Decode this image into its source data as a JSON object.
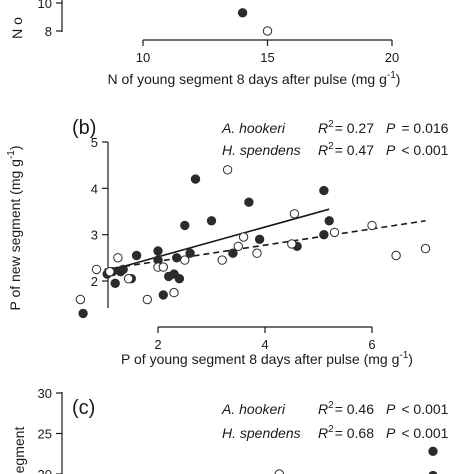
{
  "chart_data": [
    {
      "panel": "(a)",
      "type": "scatter",
      "xlabel": "N of young segment 8 days after pulse (mg g",
      "xlabel_sup": "-1",
      "xlabel_close": ")",
      "ylabel": "N o",
      "xlim": [
        10,
        20
      ],
      "xticks": [
        "10",
        "15",
        "20"
      ],
      "yticks": [
        "8",
        "10"
      ],
      "series": [
        {
          "marker": "filled",
          "points": [
            [
              14.0,
              9.3
            ]
          ]
        },
        {
          "marker": "open",
          "points": [
            [
              15.0,
              8.0
            ]
          ]
        }
      ]
    },
    {
      "panel": "(b)",
      "type": "scatter",
      "xlabel": "P of young segment 8 days after pulse (mg g",
      "xlabel_sup": "-1",
      "xlabel_close": ")",
      "ylabel": "P of new segment (mg g",
      "ylabel_sup": "-1",
      "ylabel_close": ")",
      "xlim": [
        0.5,
        7.0
      ],
      "ylim": [
        1.2,
        5.0
      ],
      "xticks": [
        "2",
        "4",
        "6"
      ],
      "yticks": [
        "2",
        "3",
        "4",
        "5"
      ],
      "stats": [
        {
          "species": "A. hookeri",
          "r2_label": "R",
          "r2_sup": "2",
          "r2_value": "= 0.27",
          "p_label": "P",
          "p_value": "= 0.016"
        },
        {
          "species": "H. spendens",
          "r2_label": "R",
          "r2_sup": "2",
          "r2_value": "= 0.47",
          "p_label": "P",
          "p_value": "< 0.001"
        }
      ],
      "series": [
        {
          "marker": "filled",
          "fit": {
            "style": "solid",
            "x": [
              1.0,
              5.2
            ],
            "y": [
              2.2,
              3.55
            ]
          },
          "points": [
            [
              0.6,
              1.3
            ],
            [
              1.05,
              2.15
            ],
            [
              1.15,
              2.2
            ],
            [
              1.2,
              1.95
            ],
            [
              1.35,
              2.25
            ],
            [
              1.5,
              2.05
            ],
            [
              2.0,
              2.65
            ],
            [
              2.0,
              2.45
            ],
            [
              2.1,
              1.7
            ],
            [
              2.2,
              2.1
            ],
            [
              2.3,
              2.15
            ],
            [
              2.35,
              2.5
            ],
            [
              2.4,
              2.05
            ],
            [
              2.6,
              2.6
            ],
            [
              2.7,
              4.2
            ],
            [
              3.0,
              3.3
            ],
            [
              3.4,
              2.6
            ],
            [
              3.7,
              3.7
            ],
            [
              3.9,
              2.9
            ],
            [
              4.6,
              2.75
            ],
            [
              5.1,
              3.95
            ],
            [
              5.1,
              3.0
            ],
            [
              5.2,
              3.3
            ],
            [
              1.6,
              2.55
            ],
            [
              1.3,
              2.2
            ],
            [
              2.5,
              3.2
            ]
          ]
        },
        {
          "marker": "open",
          "fit": {
            "style": "dashed",
            "x": [
              1.0,
              7.0
            ],
            "y": [
              2.25,
              3.3
            ]
          },
          "points": [
            [
              0.55,
              1.6
            ],
            [
              0.85,
              2.25
            ],
            [
              1.1,
              2.2
            ],
            [
              1.25,
              2.5
            ],
            [
              1.45,
              2.05
            ],
            [
              1.8,
              1.6
            ],
            [
              2.0,
              2.3
            ],
            [
              2.3,
              1.75
            ],
            [
              2.5,
              2.45
            ],
            [
              3.2,
              2.45
            ],
            [
              3.3,
              4.4
            ],
            [
              3.5,
              2.75
            ],
            [
              3.6,
              2.95
            ],
            [
              3.85,
              2.6
            ],
            [
              4.5,
              2.8
            ],
            [
              4.55,
              3.45
            ],
            [
              5.3,
              3.05
            ],
            [
              6.0,
              3.2
            ],
            [
              6.45,
              2.55
            ],
            [
              7.0,
              2.7
            ],
            [
              2.1,
              2.3
            ]
          ]
        }
      ]
    },
    {
      "panel": "(c)",
      "type": "scatter",
      "ylabel": "egment",
      "yticks": [
        "20",
        "25",
        "30"
      ],
      "stats": [
        {
          "species": "A. hookeri",
          "r2_label": "R",
          "r2_sup": "2",
          "r2_value": "= 0.46",
          "p_label": "P",
          "p_value": "< 0.001"
        },
        {
          "species": "H. spendens",
          "r2_label": "R",
          "r2_sup": "2",
          "r2_value": "= 0.68",
          "p_label": "P",
          "p_value": "< 0.001"
        }
      ],
      "series": [
        {
          "marker": "filled",
          "points": [
            [
              7.0,
              22.8
            ],
            [
              7.0,
              19.8
            ]
          ]
        },
        {
          "marker": "open",
          "points": [
            [
              4.1,
              20.0
            ]
          ]
        }
      ]
    }
  ]
}
